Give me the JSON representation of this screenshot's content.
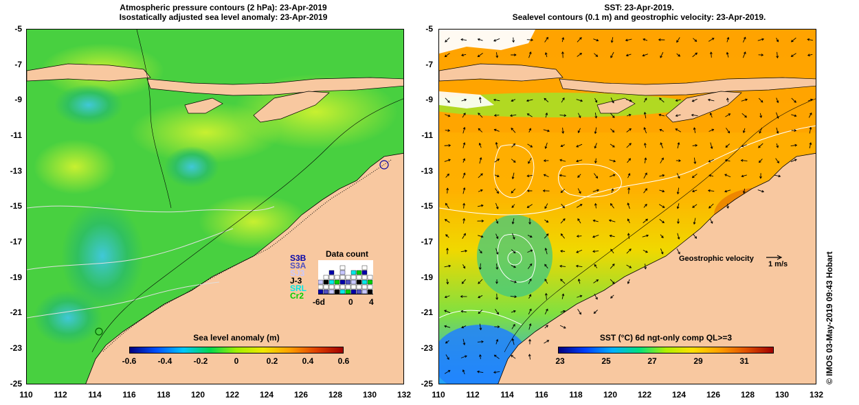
{
  "left_panel": {
    "title_line1": "Atmospheric pressure contours (2 hPa): 23-Apr-2019",
    "title_line2": "Isostatically adjusted sea level anomaly: 23-Apr-2019",
    "colorbar_label": "Sea level anomaly (m)",
    "colorbar_ticks": [
      "-0.6",
      "-0.4",
      "-0.2",
      "0",
      "0.2",
      "0.4",
      "0.6"
    ],
    "data_count": {
      "title": "Data count",
      "missions": [
        {
          "name": "S3B",
          "color": "#0000aa"
        },
        {
          "name": "S3A",
          "color": "#5050c0"
        },
        {
          "name": "SJ3",
          "color": "#c8c8ff"
        },
        {
          "name": "J-3",
          "color": "#000000"
        },
        {
          "name": "SRL",
          "color": "#00e8e8"
        },
        {
          "name": "Cr2",
          "color": "#00d000"
        }
      ],
      "axis_ticks": [
        "-6d",
        "0",
        "4"
      ]
    }
  },
  "right_panel": {
    "title_line1": "SST: 23-Apr-2019.",
    "title_line2": "Sealevel contours (0.1 m) and geostrophic velocity: 23-Apr-2019.",
    "colorbar_label": "SST (°C) 6d ngt-only comp QL>=3",
    "colorbar_ticks": [
      "23",
      "25",
      "27",
      "29",
      "31"
    ],
    "velocity_legend": "Geostrophic velocity",
    "velocity_unit": "1 m/s"
  },
  "axes": {
    "y_ticks": [
      "-5",
      "-7",
      "-9",
      "-11",
      "-13",
      "-15",
      "-17",
      "-19",
      "-21",
      "-23",
      "-25"
    ],
    "x_ticks": [
      "110",
      "112",
      "114",
      "116",
      "118",
      "120",
      "122",
      "124",
      "126",
      "128",
      "130",
      "132"
    ]
  },
  "credit": "© IMOS 03-May-2019 09:43 Hobart",
  "colors": {
    "land": "#f8c8a0",
    "sla_colormap": [
      "#000080",
      "#0050ff",
      "#00c8ff",
      "#00d850",
      "#a0f000",
      "#f0e800",
      "#ffa000",
      "#e04000",
      "#a00000"
    ],
    "sst_colormap": [
      "#000080",
      "#0040ff",
      "#00b0ff",
      "#00e080",
      "#b0f000",
      "#ffe000",
      "#ffa000",
      "#e05000",
      "#a00000"
    ]
  }
}
